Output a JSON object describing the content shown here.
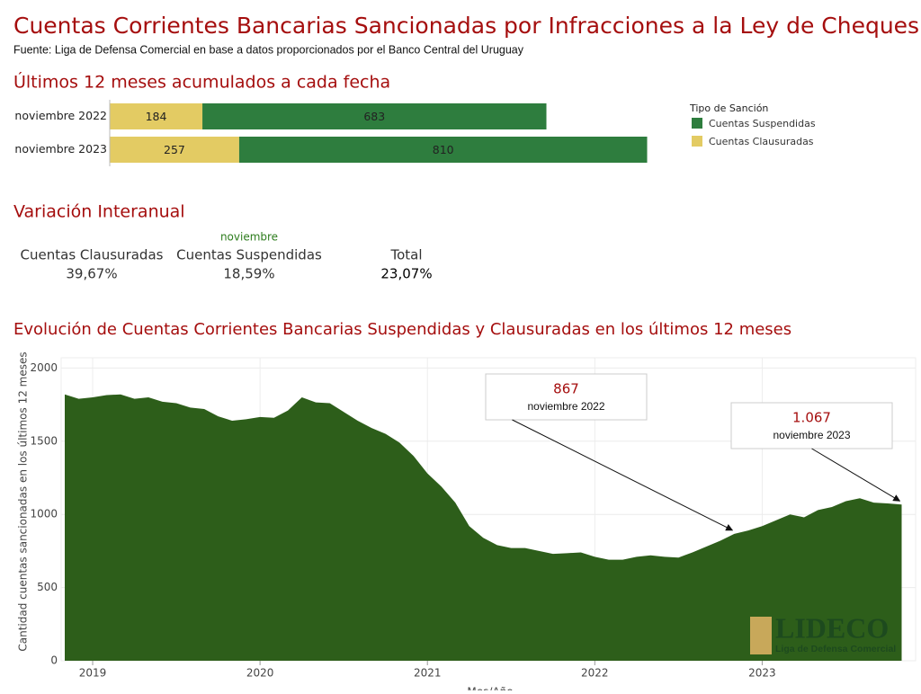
{
  "header": {
    "title": "Cuentas Corrientes Bancarias Sancionadas por Infracciones a la Ley de Cheques",
    "source": "Fuente: Liga de Defensa Comercial en base a datos proporcionados por el Banco Central del Uruguay",
    "logo": {
      "name": "LIDECO",
      "subtitle": "Liga de Defensa Comercial"
    }
  },
  "kpi": {
    "title": "Variación Interanual",
    "period": "noviembre",
    "items": [
      {
        "label": "Cuentas Clausuradas",
        "value": "39,67%"
      },
      {
        "label": "Cuentas Suspendidas",
        "value": "18,59%"
      },
      {
        "label": "Total",
        "value": "23,07%"
      }
    ]
  },
  "chart_data": [
    {
      "type": "stacked_barh",
      "title": "Últimos 12 meses acumulados a cada fecha",
      "categories": [
        "noviembre 2022",
        "noviembre 2023"
      ],
      "series": [
        {
          "name": "Cuentas Suspendidas",
          "color": "#2e7d3e",
          "values": [
            683,
            810
          ]
        },
        {
          "name": "Cuentas Clausuradas",
          "color": "#e3cb63",
          "values": [
            184,
            257
          ]
        }
      ],
      "legend_title": "Tipo de Sanción",
      "legend": "right",
      "xlim": [
        0,
        1100
      ]
    },
    {
      "type": "area",
      "title": "Evolución de Cuentas Corrientes Bancarias Suspendidas y Clausuradas en los últimos 12 meses",
      "xlabel": "Mes/Año",
      "ylabel": "Cantidad cuentas sancionadas en los últimos 12 meses",
      "color": "#2d5e1a",
      "grid": true,
      "x": [
        "2018-11",
        "2018-12",
        "2019-01",
        "2019-02",
        "2019-03",
        "2019-04",
        "2019-05",
        "2019-06",
        "2019-07",
        "2019-08",
        "2019-09",
        "2019-10",
        "2019-11",
        "2019-12",
        "2020-01",
        "2020-02",
        "2020-03",
        "2020-04",
        "2020-05",
        "2020-06",
        "2020-07",
        "2020-08",
        "2020-09",
        "2020-10",
        "2020-11",
        "2020-12",
        "2021-01",
        "2021-02",
        "2021-03",
        "2021-04",
        "2021-05",
        "2021-06",
        "2021-07",
        "2021-08",
        "2021-09",
        "2021-10",
        "2021-11",
        "2021-12",
        "2022-01",
        "2022-02",
        "2022-03",
        "2022-04",
        "2022-05",
        "2022-06",
        "2022-07",
        "2022-08",
        "2022-09",
        "2022-10",
        "2022-11",
        "2022-12",
        "2023-01",
        "2023-02",
        "2023-03",
        "2023-04",
        "2023-05",
        "2023-06",
        "2023-07",
        "2023-08",
        "2023-09",
        "2023-10",
        "2023-11"
      ],
      "values": [
        1820,
        1790,
        1800,
        1815,
        1820,
        1790,
        1800,
        1770,
        1760,
        1730,
        1720,
        1670,
        1640,
        1650,
        1665,
        1660,
        1710,
        1800,
        1765,
        1760,
        1700,
        1640,
        1590,
        1550,
        1490,
        1400,
        1280,
        1190,
        1080,
        920,
        840,
        790,
        770,
        770,
        750,
        730,
        735,
        740,
        710,
        690,
        690,
        710,
        720,
        710,
        705,
        740,
        780,
        820,
        867,
        890,
        920,
        960,
        1000,
        980,
        1030,
        1050,
        1090,
        1110,
        1080,
        1075,
        1067
      ],
      "xlim": [
        "2018-11",
        "2023-12"
      ],
      "xticks": [
        {
          "value": "2019-01",
          "label": "2019"
        },
        {
          "value": "2020-01",
          "label": "2020"
        },
        {
          "value": "2021-01",
          "label": "2021"
        },
        {
          "value": "2022-01",
          "label": "2022"
        },
        {
          "value": "2023-01",
          "label": "2023"
        }
      ],
      "ylim": [
        0,
        2070
      ],
      "yticks": [
        0,
        500,
        1000,
        1500,
        2000
      ],
      "annotations": [
        {
          "x": "2022-11",
          "value": 867,
          "label": "noviembre 2022"
        },
        {
          "x": "2023-11",
          "value": 1067,
          "value_label": "1.067",
          "label": "noviembre 2023"
        }
      ]
    }
  ]
}
